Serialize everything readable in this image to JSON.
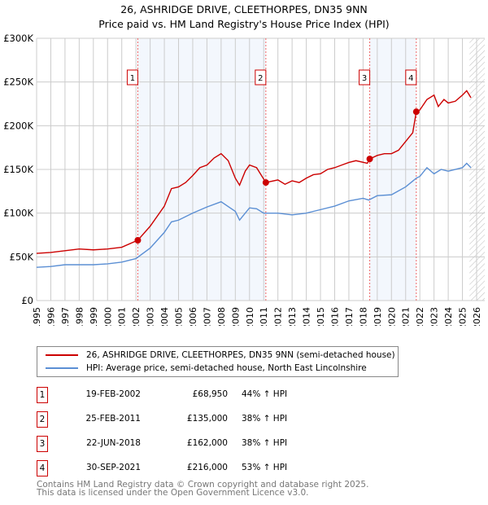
{
  "chart_data": {
    "type": "line",
    "title": "26, ASHRIDGE DRIVE, CLEETHORPES, DN35 9NN",
    "subtitle": "Price paid vs. HM Land Registry's House Price Index (HPI)",
    "xlim": [
      1995,
      2026
    ],
    "ylim": [
      0,
      300000
    ],
    "x_ticks": [
      "1995",
      "1996",
      "1997",
      "1998",
      "1999",
      "2000",
      "2001",
      "2002",
      "2003",
      "2004",
      "2005",
      "2006",
      "2007",
      "2008",
      "2009",
      "2010",
      "2011",
      "2012",
      "2013",
      "2014",
      "2015",
      "2016",
      "2017",
      "2018",
      "2019",
      "2020",
      "2021",
      "2022",
      "2023",
      "2024",
      "2025",
      "2026"
    ],
    "y_ticks": [
      {
        "v": 0,
        "label": "£0"
      },
      {
        "v": 50000,
        "label": "£50K"
      },
      {
        "v": 100000,
        "label": "£100K"
      },
      {
        "v": 150000,
        "label": "£150K"
      },
      {
        "v": 200000,
        "label": "£200K"
      },
      {
        "v": 250000,
        "label": "£250K"
      },
      {
        "v": 300000,
        "label": "£300K"
      }
    ],
    "series": [
      {
        "name": "26, ASHRIDGE DRIVE, CLEETHORPES, DN35 9NN (semi-detached house)",
        "color": "#cc0000",
        "x": [
          1995,
          1996,
          1997,
          1998,
          1999,
          2000,
          2001,
          2002.13,
          2003,
          2004,
          2004.5,
          2005,
          2005.5,
          2006,
          2006.5,
          2007,
          2007.5,
          2008,
          2008.5,
          2009,
          2009.3,
          2009.7,
          2010,
          2010.5,
          2011.15,
          2012,
          2012.5,
          2013,
          2013.5,
          2014,
          2014.5,
          2015,
          2015.5,
          2016,
          2016.5,
          2017,
          2017.5,
          2018.3,
          2018.47,
          2019,
          2019.5,
          2020,
          2020.5,
          2021,
          2021.5,
          2021.75,
          2022,
          2022.5,
          2023,
          2023.3,
          2023.7,
          2024,
          2024.5,
          2025,
          2025.3,
          2025.6
        ],
        "y": [
          54,
          55,
          57,
          59,
          58,
          59,
          61,
          69,
          85,
          108,
          128,
          130,
          135,
          143,
          152,
          155,
          163,
          168,
          160,
          140,
          132,
          148,
          155,
          152,
          135,
          138,
          133,
          137,
          135,
          140,
          144,
          145,
          150,
          152,
          155,
          158,
          160,
          157,
          162,
          166,
          168,
          168,
          172,
          182,
          192,
          216,
          218,
          230,
          235,
          222,
          230,
          226,
          228,
          235,
          240,
          232
        ]
      },
      {
        "name": "HPI: Average price, semi-detached house, North East Lincolnshire",
        "color": "#5b8fd4",
        "x": [
          1995,
          1996,
          1997,
          1998,
          1999,
          2000,
          2001,
          2002,
          2003,
          2004,
          2004.5,
          2005,
          2006,
          2007,
          2008,
          2009,
          2009.3,
          2010,
          2010.5,
          2011,
          2012,
          2013,
          2014,
          2015,
          2016,
          2017,
          2018,
          2018.4,
          2019,
          2020,
          2021,
          2021.75,
          2022,
          2022.5,
          2023,
          2023.5,
          2024,
          2025,
          2025.3,
          2025.6
        ],
        "y": [
          38,
          39,
          41,
          41,
          41,
          42,
          44,
          48,
          60,
          78,
          90,
          92,
          100,
          107,
          113,
          102,
          92,
          106,
          105,
          100,
          100,
          98,
          100,
          104,
          108,
          114,
          117,
          115,
          120,
          121,
          130,
          140,
          142,
          152,
          145,
          150,
          148,
          152,
          157,
          152
        ]
      }
    ],
    "y_units": "thousands GBP",
    "sales": [
      {
        "n": "1",
        "x": 2002.13,
        "date": "19-FEB-2002",
        "price": "£68,950",
        "value": 68950,
        "hpi": "44% ↑ HPI"
      },
      {
        "n": "2",
        "x": 2011.15,
        "date": "25-FEB-2011",
        "price": "£135,000",
        "value": 135000,
        "hpi": "38% ↑ HPI"
      },
      {
        "n": "3",
        "x": 2018.47,
        "date": "22-JUN-2018",
        "price": "£162,000",
        "value": 162000,
        "hpi": "38% ↑ HPI"
      },
      {
        "n": "4",
        "x": 2021.75,
        "date": "30-SEP-2021",
        "price": "£216,000",
        "value": 216000,
        "hpi": "53% ↑ HPI"
      }
    ],
    "legend_position": "below"
  },
  "footer": {
    "line1": "Contains HM Land Registry data © Crown copyright and database right 2025.",
    "line2": "This data is licensed under the Open Government Licence v3.0."
  }
}
